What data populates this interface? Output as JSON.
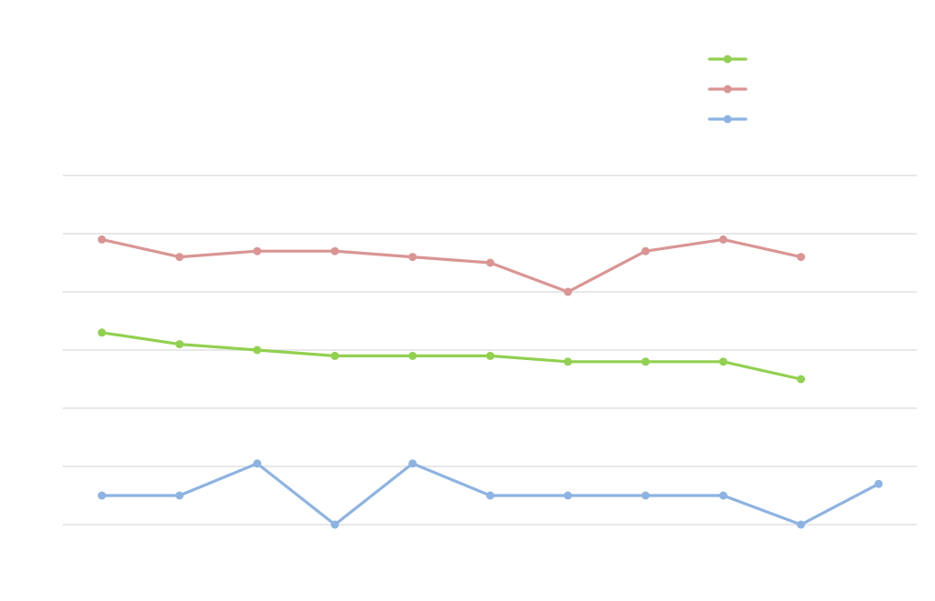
{
  "chart_data": {
    "type": "line",
    "title": "",
    "xlabel": "",
    "ylabel": "",
    "x": [
      1,
      2,
      3,
      4,
      5,
      6,
      7,
      8,
      9,
      10,
      11
    ],
    "ylim": [
      0,
      6
    ],
    "grid": true,
    "legend_position": "top-right",
    "series": [
      {
        "color": "#92d050",
        "values": [
          3.3,
          3.1,
          3.0,
          2.9,
          2.9,
          2.9,
          2.8,
          2.8,
          2.8,
          2.5,
          null
        ]
      },
      {
        "color": "#d99594",
        "values": [
          4.9,
          4.6,
          4.7,
          4.7,
          4.6,
          4.5,
          4.0,
          4.7,
          4.9,
          4.6,
          null
        ]
      },
      {
        "color": "#8db3e2",
        "values": [
          0.5,
          0.5,
          1.05,
          0.0,
          1.05,
          0.5,
          0.5,
          0.5,
          0.5,
          0.0,
          0.7
        ]
      }
    ]
  }
}
